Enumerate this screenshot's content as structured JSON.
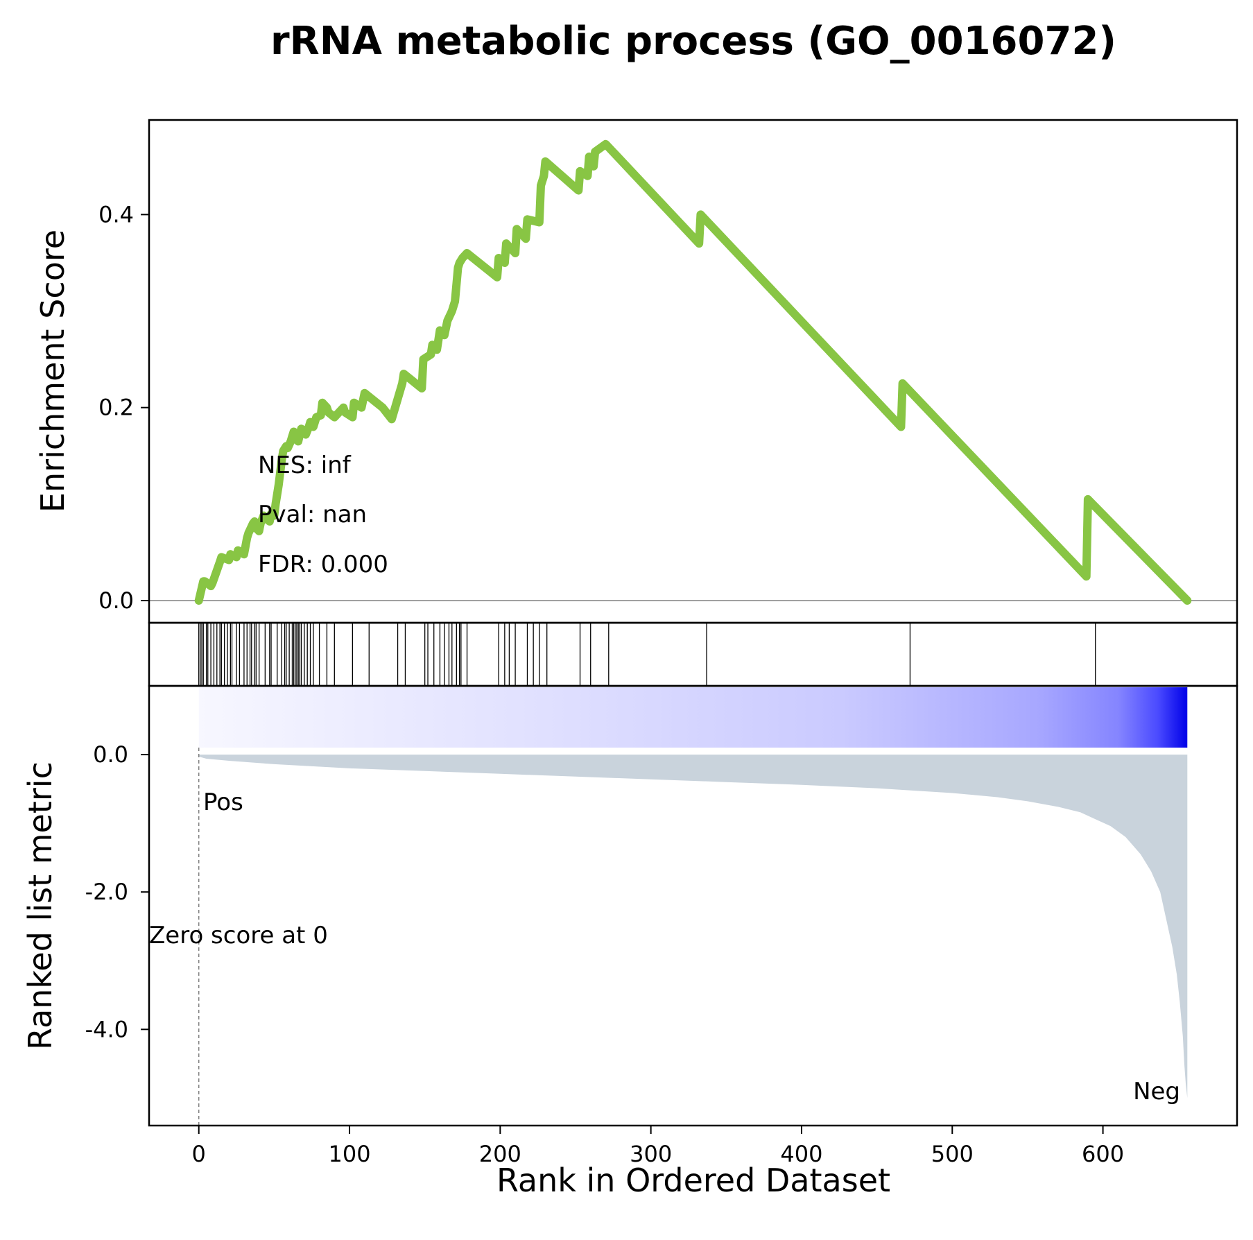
{
  "chart_data": {
    "type": "line",
    "title": "rRNA metabolic process (GO_0016072)",
    "xlabel": "Rank in Ordered Dataset",
    "xlim": [
      -33,
      689
    ],
    "x_ticks": [
      0,
      100,
      200,
      300,
      400,
      500,
      600
    ],
    "x_tick_labels": [
      "0",
      "100",
      "200",
      "300",
      "400",
      "500",
      "600"
    ],
    "enrichment": {
      "ylabel": "Enrichment Score",
      "ylim": [
        -0.023,
        0.498
      ],
      "y_ticks": [
        0.0,
        0.2,
        0.4
      ],
      "y_tick_labels": [
        "0.0",
        "0.2",
        "0.4"
      ],
      "line_color": "#88c544",
      "x": [
        0,
        3,
        4,
        8,
        9,
        14,
        15,
        20,
        21,
        25,
        26,
        30,
        32,
        33,
        36,
        37,
        38,
        40,
        41,
        43,
        44,
        47,
        48,
        50,
        51,
        53,
        55,
        56,
        58,
        59,
        61,
        62,
        63,
        64,
        66,
        67,
        68,
        70,
        71,
        73,
        74,
        76,
        78,
        81,
        82,
        85,
        86,
        90,
        96,
        97,
        102,
        103,
        108,
        110,
        114,
        122,
        128,
        135,
        136,
        148,
        149,
        154,
        155,
        158,
        160,
        163,
        165,
        168,
        170,
        172,
        173,
        175,
        178,
        198,
        199,
        203,
        204,
        210,
        211,
        217,
        218,
        226,
        227,
        229,
        230,
        252,
        253,
        258,
        259,
        262,
        263,
        270,
        332,
        333,
        466,
        467,
        589,
        590,
        656
      ],
      "y": [
        0.0,
        0.02,
        0.02,
        0.015,
        0.018,
        0.04,
        0.045,
        0.042,
        0.048,
        0.045,
        0.052,
        0.048,
        0.065,
        0.07,
        0.08,
        0.082,
        0.075,
        0.072,
        0.08,
        0.088,
        0.086,
        0.082,
        0.09,
        0.088,
        0.1,
        0.12,
        0.145,
        0.155,
        0.16,
        0.158,
        0.165,
        0.17,
        0.175,
        0.168,
        0.165,
        0.172,
        0.178,
        0.176,
        0.172,
        0.18,
        0.185,
        0.18,
        0.19,
        0.192,
        0.205,
        0.2,
        0.195,
        0.19,
        0.2,
        0.195,
        0.19,
        0.205,
        0.2,
        0.215,
        0.21,
        0.2,
        0.188,
        0.225,
        0.235,
        0.22,
        0.25,
        0.255,
        0.265,
        0.26,
        0.28,
        0.275,
        0.29,
        0.3,
        0.31,
        0.345,
        0.35,
        0.355,
        0.36,
        0.335,
        0.355,
        0.35,
        0.37,
        0.36,
        0.385,
        0.375,
        0.395,
        0.392,
        0.43,
        0.44,
        0.455,
        0.425,
        0.445,
        0.44,
        0.46,
        0.45,
        0.465,
        0.473,
        0.37,
        0.4,
        0.18,
        0.225,
        0.025,
        0.105,
        0.0
      ]
    },
    "hits": {
      "positions": [
        0,
        1,
        2,
        3,
        5,
        6,
        8,
        10,
        12,
        14,
        15,
        17,
        19,
        21,
        22,
        25,
        27,
        30,
        32,
        34,
        35,
        37,
        38,
        40,
        44,
        47,
        48,
        52,
        55,
        57,
        58,
        60,
        62,
        63,
        64,
        65,
        66,
        67,
        68,
        70,
        72,
        74,
        76,
        80,
        85,
        90,
        102,
        113,
        132,
        137,
        150,
        152,
        156,
        160,
        163,
        166,
        168,
        171,
        173,
        174,
        178,
        199,
        203,
        206,
        210,
        218,
        222,
        226,
        231,
        253,
        260,
        272,
        337,
        472,
        595
      ]
    },
    "metric": {
      "ylabel": "Ranked list metric",
      "ylim": [
        -5.4,
        1.0
      ],
      "y_ticks": [
        0.0,
        -2.0,
        -4.0
      ],
      "y_tick_labels": [
        "0.0",
        "-2.0",
        "-4.0"
      ],
      "fill_color": "#c9d3dc",
      "x": [
        0,
        5,
        20,
        50,
        100,
        150,
        200,
        250,
        300,
        350,
        400,
        450,
        500,
        530,
        550,
        570,
        585,
        595,
        605,
        615,
        625,
        632,
        638,
        642,
        646,
        649,
        651,
        653,
        654,
        655,
        656
      ],
      "y": [
        -0.03,
        -0.06,
        -0.09,
        -0.14,
        -0.2,
        -0.24,
        -0.28,
        -0.32,
        -0.36,
        -0.4,
        -0.44,
        -0.49,
        -0.56,
        -0.62,
        -0.68,
        -0.76,
        -0.84,
        -0.94,
        -1.04,
        -1.2,
        -1.45,
        -1.7,
        -2.0,
        -2.4,
        -2.8,
        -3.2,
        -3.6,
        -4.1,
        -4.5,
        -4.8,
        -5.0
      ],
      "zero_line_x": 0,
      "pos_label": "Pos",
      "neg_label": "Neg",
      "pos_color": "#ff0000",
      "neg_color": "#0000ff",
      "zero_score_label": "Zero score at 0"
    },
    "colorbar": {
      "from_color": "#f7f7ff",
      "to_color": "#0000e8"
    },
    "stats": {
      "nes": "NES: inf",
      "pval": "Pval: nan",
      "fdr": "FDR: 0.000"
    }
  }
}
